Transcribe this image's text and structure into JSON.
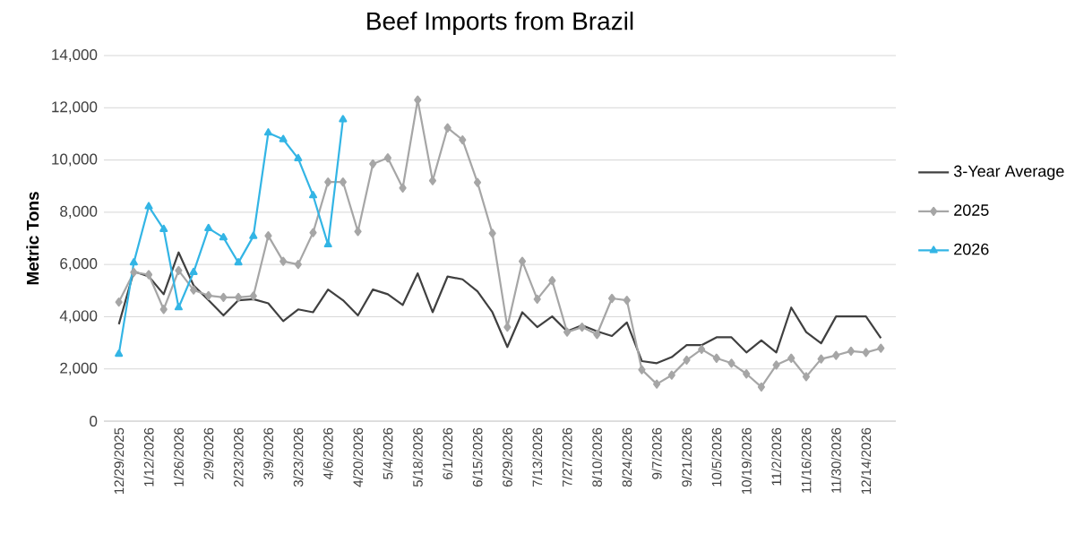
{
  "chart_data": {
    "type": "line",
    "title": "Beef Imports from Brazil",
    "ylabel": "Metric Tons",
    "categories": [
      "12/29/2025",
      null,
      "1/12/2026",
      null,
      "1/26/2026",
      null,
      "2/9/2026",
      null,
      "2/23/2026",
      null,
      "3/9/2026",
      null,
      "3/23/2026",
      null,
      "4/6/2026",
      null,
      "4/20/2026",
      null,
      "5/4/2026",
      null,
      "5/18/2026",
      null,
      "6/1/2026",
      null,
      "6/15/2026",
      null,
      "6/29/2026",
      null,
      "7/13/2026",
      null,
      "7/27/2026",
      null,
      "8/10/2026",
      null,
      "8/24/2026",
      null,
      "9/7/2026",
      null,
      "9/21/2026",
      null,
      "10/5/2026",
      null,
      "10/19/2026",
      null,
      "11/2/2026",
      null,
      "11/16/2026",
      null,
      "11/30/2026",
      null,
      "12/14/2026",
      null
    ],
    "ylim": [
      0,
      14000
    ],
    "yticks": [
      {
        "value": 0,
        "label": "0"
      },
      {
        "value": 2000,
        "label": "2,000"
      },
      {
        "value": 4000,
        "label": "4,000"
      },
      {
        "value": 6000,
        "label": "6,000"
      },
      {
        "value": 8000,
        "label": "8,000"
      },
      {
        "value": 10000,
        "label": "10,000"
      },
      {
        "value": 12000,
        "label": "12,000"
      },
      {
        "value": 14000,
        "label": "14,000"
      }
    ],
    "grid": "y",
    "legend": "right",
    "series": [
      {
        "name": "3-Year Average",
        "color": "#404040",
        "marker": "none",
        "values": [
          3710,
          5730,
          5540,
          4860,
          6460,
          5200,
          4630,
          4050,
          4630,
          4670,
          4510,
          3830,
          4280,
          4170,
          5040,
          4630,
          4050,
          5040,
          4860,
          4450,
          5660,
          4170,
          5540,
          5430,
          4970,
          4170,
          2840,
          4170,
          3600,
          4010,
          3440,
          3670,
          3440,
          3260,
          3780,
          2300,
          2220,
          2450,
          2910,
          2910,
          3210,
          3210,
          2630,
          3090,
          2630,
          4350,
          3410,
          2980,
          4010,
          4010,
          4010,
          3180
        ]
      },
      {
        "name": "2025",
        "color": "#a6a6a6",
        "marker": "diamond",
        "values": [
          4560,
          5700,
          5610,
          4280,
          5770,
          5020,
          4810,
          4740,
          4740,
          4790,
          7100,
          6120,
          6000,
          7220,
          9160,
          9160,
          7260,
          9850,
          10080,
          8930,
          12300,
          9210,
          11230,
          10770,
          9140,
          7190,
          3600,
          6120,
          4670,
          5380,
          3410,
          3600,
          3320,
          4700,
          4630,
          1970,
          1420,
          1760,
          2340,
          2750,
          2410,
          2220,
          1810,
          1310,
          2150,
          2410,
          1700,
          2380,
          2520,
          2680,
          2630,
          2790
        ]
      },
      {
        "name": "2026",
        "color": "#33b5e5",
        "marker": "triangle",
        "values": [
          2570,
          6070,
          8220,
          7350,
          4350,
          5700,
          7380,
          7030,
          6070,
          7080,
          11040,
          10790,
          10060,
          8640,
          6760,
          11550,
          null,
          null,
          null,
          null,
          null,
          null,
          null,
          null,
          null,
          null,
          null,
          null,
          null,
          null,
          null,
          null,
          null,
          null,
          null,
          null,
          null,
          null,
          null,
          null,
          null,
          null,
          null,
          null,
          null,
          null,
          null,
          null,
          null,
          null,
          null,
          null
        ]
      }
    ]
  }
}
